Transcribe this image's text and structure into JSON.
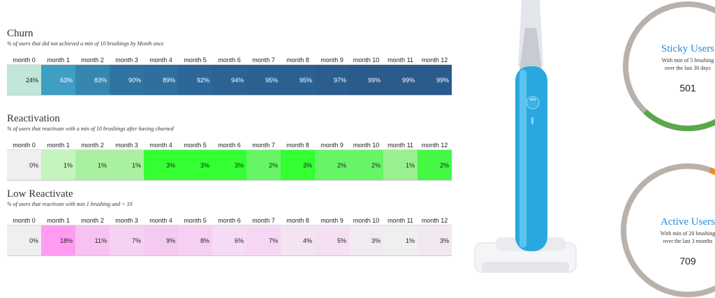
{
  "tables": [
    {
      "title": "Churn",
      "subtitle": "% of users that  did not achieved  a min of 10 brushings by  Month once",
      "headers": [
        "month 0",
        "month 1",
        "month 2",
        "month 3",
        "month 4",
        "month 5",
        "month 6",
        "month 7",
        "month 8",
        "month 9",
        "month 10",
        "month 11",
        "month 12"
      ],
      "cells": [
        "24%",
        "63%",
        "83%",
        "90%",
        "89%",
        "92%",
        "94%",
        "95%",
        "95%",
        "97%",
        "99%",
        "99%",
        "99%"
      ],
      "colors": [
        "#bfe6d8",
        "#3f9ec4",
        "#3587b0",
        "#2f74a2",
        "#2e6f9f",
        "#2d6799",
        "#2c6394",
        "#2b6192",
        "#2b6192",
        "#2b5e8f",
        "#2a5b8c",
        "#2a5b8c",
        "#2a5b8c"
      ]
    },
    {
      "title": "Reactivation",
      "subtitle": "% of users that reactivate with a min of 10 brushings  after having churned",
      "headers": [
        "month 0",
        "month 1",
        "month 2",
        "month 3",
        "month 4",
        "month 5",
        "month 6",
        "month 7",
        "month 8",
        "month 9",
        "month 10",
        "month 11",
        "month 12"
      ],
      "cells": [
        "0%",
        "1%",
        "1%",
        "1%",
        "3%",
        "3%",
        "3%",
        "2%",
        "3%",
        "2%",
        "2%",
        "1%",
        "2%"
      ],
      "colors": [
        "#efefef",
        "#c6f4bf",
        "#a9f0a1",
        "#a9f0a1",
        "#33ff33",
        "#33ff33",
        "#33ff33",
        "#66f566",
        "#33ff33",
        "#66f566",
        "#66f566",
        "#99f090",
        "#44f844"
      ]
    },
    {
      "title": "Low Reactivate",
      "subtitle": "% of users that reactivate with min 1 brushing and < 10",
      "headers": [
        "month 0",
        "month 1",
        "month 2",
        "month 3",
        "month 4",
        "month 5",
        "month 6",
        "month 7",
        "month 8",
        "month 9",
        "month 10",
        "month 11",
        "month 12"
      ],
      "cells": [
        "0%",
        "18%",
        "11%",
        "7%",
        "9%",
        "8%",
        "6%",
        "7%",
        "4%",
        "5%",
        "3%",
        "1%",
        "3%"
      ],
      "colors": [
        "#efefef",
        "#ff9cf2",
        "#f7c2f1",
        "#f5d2f2",
        "#f4caf0",
        "#f5d0f2",
        "#f5dbf3",
        "#f5d7f3",
        "#f3e3f3",
        "#f4dff3",
        "#f1ebf1",
        "#efefef",
        "#f1e8f1"
      ]
    }
  ],
  "product_label": "ara",
  "gauges": [
    {
      "title": "Sticky Users",
      "lines": [
        "With min of 5 brushing",
        "over the last 30 days"
      ],
      "value": 501
    },
    {
      "title": "Active Users",
      "lines": [
        "With min of 20 brushing",
        "over the last 3 months"
      ],
      "value": 709
    }
  ]
}
